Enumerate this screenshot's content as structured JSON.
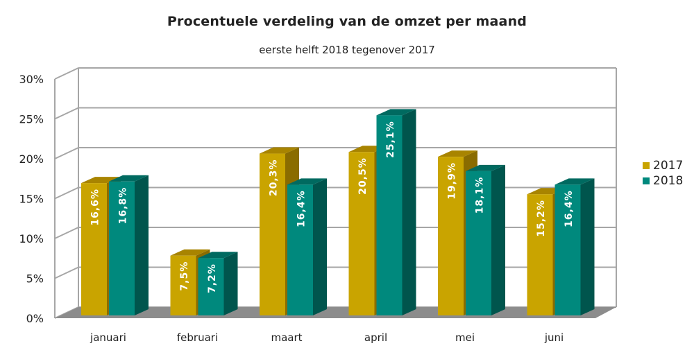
{
  "title": "Procentuele verdeling van de omzet per maand",
  "subtitle": "eerste helft 2018 tegenover 2017",
  "colors": {
    "2017_front": "#c9a400",
    "2017_top": "#a88400",
    "2017_side": "#8a6c00",
    "2018_front": "#00897d",
    "2018_top": "#006a60",
    "2018_side": "#00554d",
    "grid": "#a6a6a6",
    "floor": "#8c8c8c"
  },
  "legend": [
    {
      "label": "2017",
      "color": "#c9a400"
    },
    {
      "label": "2018",
      "color": "#00897d"
    }
  ],
  "chart_data": {
    "type": "bar",
    "title": "Procentuele verdeling van de omzet per maand",
    "subtitle": "eerste helft 2018 tegenover 2017",
    "xlabel": "",
    "ylabel": "",
    "categories": [
      "januari",
      "februari",
      "maart",
      "april",
      "mei",
      "juni"
    ],
    "series": [
      {
        "name": "2017",
        "values": [
          16.6,
          7.5,
          20.3,
          20.5,
          19.9,
          15.2
        ],
        "labels": [
          "16,6%",
          "7,5%",
          "20,3%",
          "20,5%",
          "19,9%",
          "15,2%"
        ]
      },
      {
        "name": "2018",
        "values": [
          16.8,
          7.2,
          16.4,
          25.1,
          18.1,
          16.4
        ],
        "labels": [
          "16,8%",
          "7,2%",
          "16,4%",
          "25,1%",
          "18,1%",
          "16,4%"
        ]
      }
    ],
    "yticks": [
      "0%",
      "5%",
      "10%",
      "15%",
      "20%",
      "25%",
      "30%"
    ],
    "ylim": [
      0,
      30
    ],
    "grid": true,
    "legend_position": "right",
    "style": "3d-clustered-column"
  }
}
